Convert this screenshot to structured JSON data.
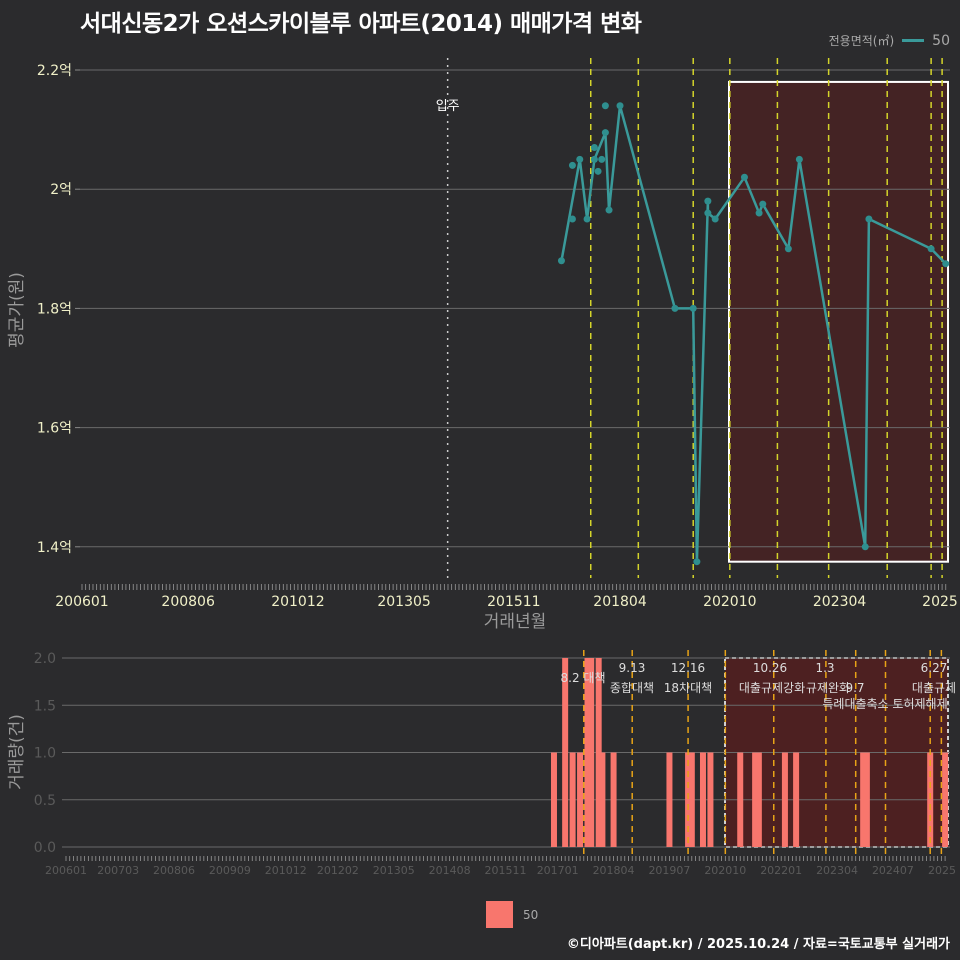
{
  "title": "서대신동2가 오션스카이블루 아파트(2014) 매매가격 변화",
  "legend_top": {
    "label": "전용면적(㎡)",
    "series": "50",
    "color": "#3a9a9a"
  },
  "legend_bottom": {
    "series": "50",
    "color": "#f8766d"
  },
  "footer": "©디아파트(dapt.kr) / 2025.10.24 / 자료=국토교통부 실거래가",
  "chart_data": [
    {
      "type": "line",
      "title": "서대신동2가 오션스카이블루 아파트(2014) 매매가격 변화",
      "xlabel": "거래년월",
      "ylabel": "평균가(원)",
      "x_tick_labels": [
        "200601",
        "200806",
        "201012",
        "201305",
        "201511",
        "201804",
        "202010",
        "202304",
        "2025"
      ],
      "y_tick_labels": [
        "1.4억",
        "1.6억",
        "1.8억",
        "2억",
        "2.2억"
      ],
      "ylim": [
        1.35,
        2.22
      ],
      "unit": "억원",
      "annotation": {
        "label": "입주",
        "x": "201406"
      },
      "shaded_region": {
        "from": "202011",
        "to": "202509",
        "ymin": 1.375,
        "ymax": 2.18
      },
      "policy_lines": [
        "201708",
        "201809",
        "201912",
        "202010",
        "202111",
        "202301",
        "202405",
        "202505",
        "202508"
      ],
      "series": [
        {
          "name": "50",
          "points": [
            [
              "201612",
              1.88
            ],
            [
              "201703",
              1.95
            ],
            [
              "201703",
              2.04
            ],
            [
              "201705",
              2.05
            ],
            [
              "201707",
              1.95
            ],
            [
              "201709",
              2.07
            ],
            [
              "201709",
              2.05
            ],
            [
              "201710",
              2.03
            ],
            [
              "201711",
              2.05
            ],
            [
              "201712",
              2.095
            ],
            [
              "201712",
              2.14
            ],
            [
              "201801",
              1.965
            ],
            [
              "201804",
              2.14
            ],
            [
              "201907",
              1.8
            ],
            [
              "201912",
              1.8
            ],
            [
              "202001",
              1.375
            ],
            [
              "202004",
              1.98
            ],
            [
              "202004",
              1.96
            ],
            [
              "202006",
              1.95
            ],
            [
              "202102",
              2.02
            ],
            [
              "202106",
              1.96
            ],
            [
              "202107",
              1.975
            ],
            [
              "202202",
              1.9
            ],
            [
              "202205",
              2.05
            ],
            [
              "202311",
              1.4
            ],
            [
              "202312",
              1.95
            ],
            [
              "202505",
              1.9
            ],
            [
              "202509",
              1.875
            ]
          ]
        }
      ]
    },
    {
      "type": "bar",
      "xlabel": "",
      "ylabel": "거래량(건)",
      "x_tick_labels": [
        "200601",
        "200703",
        "200806",
        "200909",
        "201012",
        "201202",
        "201305",
        "201408",
        "201511",
        "201701",
        "201804",
        "201907",
        "202010",
        "202201",
        "202304",
        "202407",
        "2025"
      ],
      "y_tick_labels": [
        "0.0",
        "0.5",
        "1.0",
        "1.5",
        "2.0"
      ],
      "ylim": [
        0,
        2.0
      ],
      "policy_annotations": [
        {
          "date": "201708",
          "label": "8.2 대책"
        },
        {
          "date": "201809",
          "label": "9.13 종합대책"
        },
        {
          "date": "201912",
          "label": "12.16 18차대책"
        },
        {
          "date": "202010",
          "label": "10.26 대출규제강화"
        },
        {
          "date": "202301",
          "label": "1.3 규제완화"
        },
        {
          "date": "202309",
          "label": "9.7 특례대출축소"
        },
        {
          "date": "202505",
          "label": "6.27 대출규제"
        },
        {
          "date": "202508",
          "label": "토허제해제"
        }
      ],
      "series": [
        {
          "name": "50",
          "points": [
            [
              "201612",
              1
            ],
            [
              "201703",
              2
            ],
            [
              "201705",
              1
            ],
            [
              "201707",
              1
            ],
            [
              "201709",
              2
            ],
            [
              "201710",
              2
            ],
            [
              "201712",
              2
            ],
            [
              "201801",
              1
            ],
            [
              "201804",
              1
            ],
            [
              "201907",
              1
            ],
            [
              "201912",
              1
            ],
            [
              "202001",
              1
            ],
            [
              "202004",
              1
            ],
            [
              "202006",
              1
            ],
            [
              "202102",
              1
            ],
            [
              "202106",
              1
            ],
            [
              "202107",
              1
            ],
            [
              "202202",
              1
            ],
            [
              "202205",
              1
            ],
            [
              "202311",
              1
            ],
            [
              "202312",
              1
            ],
            [
              "202505",
              1
            ],
            [
              "202509",
              1
            ]
          ]
        }
      ]
    }
  ]
}
